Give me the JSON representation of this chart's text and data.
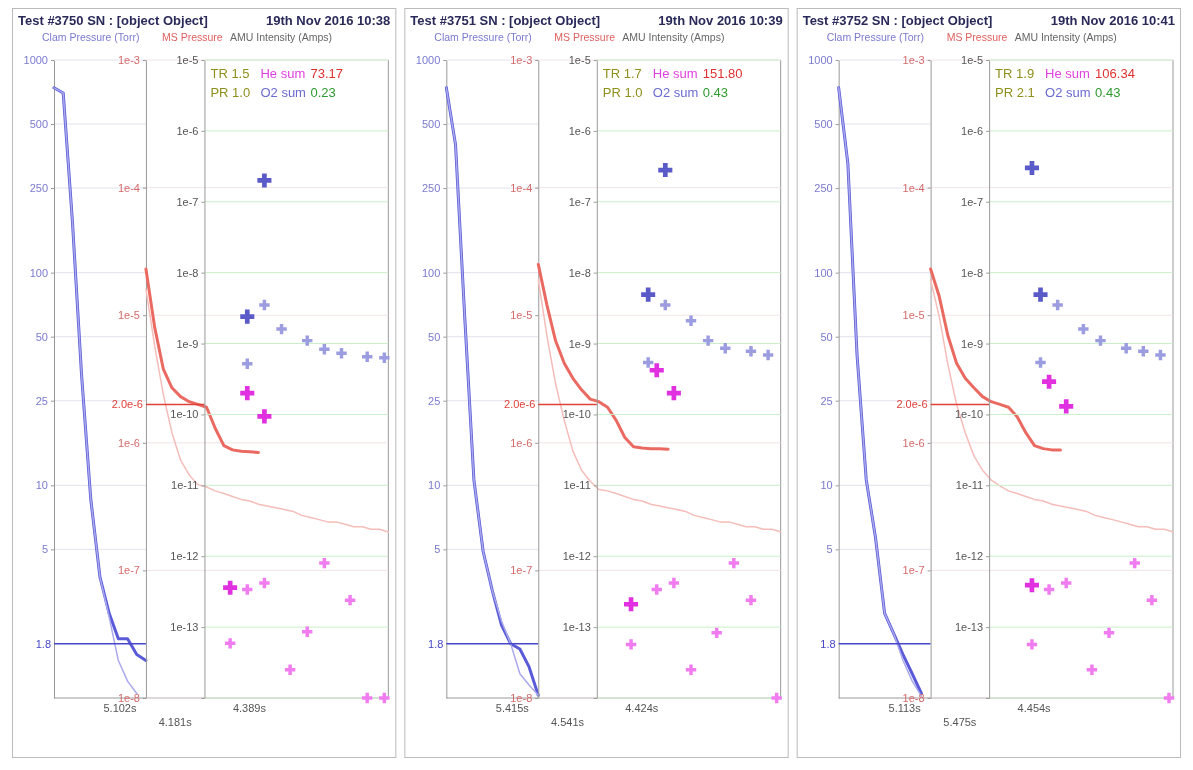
{
  "chart_data": [
    {
      "type": "line",
      "title": "Test #3750   SN : [object Object]",
      "ylabel": "Clam Pressure (Torr)",
      "log": true,
      "grid": true,
      "categories": [
        null,
        null,
        null,
        null,
        null,
        null,
        null,
        null,
        null,
        null,
        null
      ],
      "ylim": [
        1,
        1000
      ],
      "yticks": [
        1000,
        500,
        250,
        100,
        50,
        25,
        10,
        5
      ],
      "ref_lines": [
        {
          "axis": "y",
          "value": 1.8,
          "label": "1.8",
          "color": "#4646c8"
        }
      ],
      "annotations": [
        "5.102s"
      ],
      "series": [
        {
          "color": "#5b5bd9",
          "values": [
            740,
            700,
            175,
            33,
            8.6,
            3.7,
            2.5,
            1.9,
            1.9,
            1.6,
            1.5
          ]
        },
        {
          "color": "#a9a9ec",
          "values": [
            740,
            700,
            175,
            33,
            8.6,
            3.7,
            2.4,
            1.5,
            1.2,
            1.05,
            null
          ]
        }
      ]
    },
    {
      "type": "line",
      "ylabel": "MS Pressure",
      "log": true,
      "grid": true,
      "categories": [
        null,
        null,
        null,
        null,
        null,
        null,
        null,
        null,
        null,
        null,
        null,
        null,
        null,
        null,
        null,
        null,
        null,
        null,
        null,
        null,
        null,
        null,
        null,
        null,
        null,
        null,
        null,
        null,
        null
      ],
      "ylim": [
        1e-08,
        0.001
      ],
      "yticks": [
        {
          "value": 0.001,
          "label": "1e-3"
        },
        {
          "value": 0.0001,
          "label": "1e-4"
        },
        {
          "value": 1e-05,
          "label": "1e-5"
        },
        {
          "value": 1e-06,
          "label": "1e-6"
        },
        {
          "value": 1e-07,
          "label": "1e-7"
        },
        {
          "value": 1e-08,
          "label": "1e-8"
        }
      ],
      "ref_lines": [
        {
          "axis": "y",
          "value": 2e-06,
          "label": "2.0e-6",
          "color": "#e0403a"
        }
      ],
      "annotations": [
        "4.181s"
      ],
      "series": [
        {
          "color": "#ea6a62",
          "values": [
            2.3e-05,
            8.1e-06,
            3.8e-06,
            2.7e-06,
            2.3e-06,
            2.1e-06,
            2e-06,
            1.9e-06,
            1.3e-06,
            9.5e-07,
            8.8e-07,
            8.6e-07,
            8.5e-07,
            8.4e-07,
            null,
            null,
            null,
            null,
            null,
            null,
            null,
            null,
            null,
            null,
            null,
            null,
            null,
            null,
            null
          ]
        },
        {
          "color": "#f5bdb9",
          "values": [
            1.6e-05,
            5.8e-06,
            2.4e-06,
            1.2e-06,
            7.3e-07,
            5.6e-07,
            4.7e-07,
            4.5e-07,
            4.2e-07,
            4e-07,
            3.8e-07,
            3.6e-07,
            3.5e-07,
            3.3e-07,
            3.2e-07,
            3.1e-07,
            3e-07,
            2.9e-07,
            2.7e-07,
            2.6e-07,
            2.5e-07,
            2.4e-07,
            2.4e-07,
            2.3e-07,
            2.2e-07,
            2.2e-07,
            2.1e-07,
            2.1e-07,
            2e-07
          ]
        }
      ]
    },
    {
      "type": "scatter",
      "title": "19th Nov 2016 10:38",
      "ylabel": "AMU Intensity (Amps)",
      "log": true,
      "grid": true,
      "marker": "cross",
      "categories": [
        null,
        null,
        null,
        null,
        null,
        null,
        null,
        null,
        null,
        null,
        null,
        null,
        null,
        null,
        null,
        null,
        null,
        null,
        null,
        null,
        null,
        null
      ],
      "ylim": [
        1e-14,
        1e-05
      ],
      "yticks": [
        {
          "value": 1e-05,
          "label": "1e-5"
        },
        {
          "value": 1e-06,
          "label": "1e-6"
        },
        {
          "value": 1e-07,
          "label": "1e-7"
        },
        {
          "value": 1e-08,
          "label": "1e-8"
        },
        {
          "value": 1e-09,
          "label": "1e-9"
        },
        {
          "value": 1e-10,
          "label": "1e-10"
        },
        {
          "value": 1e-11,
          "label": "1e-11"
        },
        {
          "value": 1e-12,
          "label": "1e-12"
        },
        {
          "value": 1e-13,
          "label": "1e-13"
        },
        {
          "value": 1e-14,
          "label": null
        }
      ],
      "annotations": [
        "4.389s",
        "TR 1.5",
        "He sum",
        "73.17",
        "PR 1.0",
        "O2 sum",
        "0.23"
      ],
      "series": [
        {
          "color": "#5a5ac8",
          "values": [
            null,
            null,
            null,
            null,
            null,
            2.4e-09,
            null,
            2e-07,
            null,
            null,
            null,
            null,
            null,
            null,
            null,
            null,
            null,
            null,
            null,
            null,
            null,
            null
          ]
        },
        {
          "color": "#9c9ce0",
          "values": [
            null,
            null,
            null,
            null,
            null,
            5.2e-10,
            null,
            3.5e-09,
            null,
            1.6e-09,
            null,
            null,
            1.1e-09,
            null,
            8.3e-10,
            null,
            7.3e-10,
            null,
            null,
            6.5e-10,
            null,
            6.3e-10
          ]
        },
        {
          "color": "#e030e0",
          "values": [
            null,
            null,
            null,
            3.6e-13,
            null,
            2e-10,
            null,
            9.4e-11,
            null,
            null,
            null,
            null,
            null,
            null,
            null,
            null,
            null,
            null,
            null,
            null,
            null,
            null
          ]
        },
        {
          "color": "#f07cf0",
          "values": [
            null,
            null,
            null,
            5.9e-14,
            null,
            3.4e-13,
            null,
            4.2e-13,
            null,
            null,
            2.5e-14,
            null,
            8.6e-14,
            null,
            8e-13,
            null,
            null,
            2.4e-13,
            null,
            1e-14,
            null,
            1e-14
          ]
        }
      ]
    },
    {
      "type": "line",
      "title": "Test #3751   SN : [object Object]",
      "ylabel": "Clam Pressure (Torr)",
      "log": true,
      "grid": true,
      "categories": [
        null,
        null,
        null,
        null,
        null,
        null,
        null,
        null,
        null,
        null,
        null
      ],
      "ylim": [
        1,
        1000
      ],
      "yticks": [
        1000,
        500,
        250,
        100,
        50,
        25,
        10,
        5
      ],
      "ref_lines": [
        {
          "axis": "y",
          "value": 1.8,
          "label": "1.8",
          "color": "#4646c8"
        }
      ],
      "annotations": [
        "5.415s"
      ],
      "series": [
        {
          "color": "#5b5bd9",
          "values": [
            740,
            400,
            62,
            10.6,
            4.9,
            3.2,
            2.2,
            1.8,
            1.7,
            1.4,
            1.03
          ]
        },
        {
          "color": "#a9a9ec",
          "values": [
            740,
            400,
            62,
            10.6,
            4.9,
            3.2,
            2.3,
            1.8,
            1.3,
            1.15,
            1.03
          ]
        }
      ]
    },
    {
      "type": "line",
      "ylabel": "MS Pressure",
      "log": true,
      "grid": true,
      "categories": [
        null,
        null,
        null,
        null,
        null,
        null,
        null,
        null,
        null,
        null,
        null,
        null,
        null,
        null,
        null,
        null,
        null,
        null,
        null,
        null,
        null,
        null,
        null,
        null,
        null,
        null,
        null,
        null,
        null
      ],
      "ylim": [
        1e-08,
        0.001
      ],
      "yticks": [
        {
          "value": 0.001,
          "label": "1e-3"
        },
        {
          "value": 0.0001,
          "label": "1e-4"
        },
        {
          "value": 1e-05,
          "label": "1e-5"
        },
        {
          "value": 1e-06,
          "label": "1e-6"
        },
        {
          "value": 1e-07,
          "label": "1e-7"
        },
        {
          "value": 1e-08,
          "label": "1e-8"
        }
      ],
      "ref_lines": [
        {
          "axis": "y",
          "value": 2e-06,
          "label": "2.0e-6",
          "color": "#e0403a"
        }
      ],
      "annotations": [
        "4.541s"
      ],
      "series": [
        {
          "color": "#ea6a62",
          "values": [
            2.5e-05,
            1.2e-05,
            6.3e-06,
            4.2e-06,
            3.2e-06,
            2.6e-06,
            2.2e-06,
            2.1e-06,
            1.9e-06,
            1.5e-06,
            1.1e-06,
            9.3e-07,
            9.1e-07,
            9e-07,
            9e-07,
            8.9e-07,
            null,
            null,
            null,
            null,
            null,
            null,
            null,
            null,
            null,
            null,
            null,
            null,
            null
          ]
        },
        {
          "color": "#f5bdb9",
          "values": [
            1.9e-05,
            6.9e-06,
            2.9e-06,
            1.5e-06,
            8.6e-07,
            6.1e-07,
            5e-07,
            4.3e-07,
            4.2e-07,
            4e-07,
            3.8e-07,
            3.6e-07,
            3.5e-07,
            3.3e-07,
            3.2e-07,
            3.1e-07,
            3e-07,
            2.9e-07,
            2.7e-07,
            2.6e-07,
            2.5e-07,
            2.4e-07,
            2.4e-07,
            2.3e-07,
            2.2e-07,
            2.2e-07,
            2.1e-07,
            2.1e-07,
            2e-07
          ]
        }
      ]
    },
    {
      "type": "scatter",
      "title": "19th Nov 2016 10:39",
      "ylabel": "AMU Intensity (Amps)",
      "log": true,
      "grid": true,
      "marker": "cross",
      "categories": [
        null,
        null,
        null,
        null,
        null,
        null,
        null,
        null,
        null,
        null,
        null,
        null,
        null,
        null,
        null,
        null,
        null,
        null,
        null,
        null,
        null,
        null
      ],
      "ylim": [
        1e-14,
        1e-05
      ],
      "yticks": [
        {
          "value": 1e-05,
          "label": "1e-5"
        },
        {
          "value": 1e-06,
          "label": "1e-6"
        },
        {
          "value": 1e-07,
          "label": "1e-7"
        },
        {
          "value": 1e-08,
          "label": "1e-8"
        },
        {
          "value": 1e-09,
          "label": "1e-9"
        },
        {
          "value": 1e-10,
          "label": "1e-10"
        },
        {
          "value": 1e-11,
          "label": "1e-11"
        },
        {
          "value": 1e-12,
          "label": "1e-12"
        },
        {
          "value": 1e-13,
          "label": "1e-13"
        },
        {
          "value": 1e-14,
          "label": null
        }
      ],
      "annotations": [
        "4.424s",
        "TR 1.7",
        "He sum",
        "151.80",
        "PR 1.0",
        "O2 sum",
        "0.43"
      ],
      "series": [
        {
          "color": "#5a5ac8",
          "values": [
            null,
            null,
            null,
            null,
            null,
            null,
            4.9e-09,
            null,
            2.8e-07,
            null,
            null,
            null,
            null,
            null,
            null,
            null,
            null,
            null,
            null,
            null,
            null,
            null
          ]
        },
        {
          "color": "#9c9ce0",
          "values": [
            null,
            null,
            null,
            null,
            null,
            null,
            5.4e-10,
            null,
            3.5e-09,
            null,
            null,
            2.1e-09,
            null,
            1.1e-09,
            null,
            8.6e-10,
            null,
            null,
            7.8e-10,
            null,
            6.9e-10,
            null
          ]
        },
        {
          "color": "#e030e0",
          "values": [
            null,
            null,
            null,
            null,
            2.1e-13,
            null,
            null,
            4.2e-10,
            null,
            2e-10,
            null,
            null,
            null,
            null,
            null,
            null,
            null,
            null,
            null,
            null,
            null,
            null
          ]
        },
        {
          "color": "#f07cf0",
          "values": [
            null,
            null,
            null,
            null,
            5.7e-14,
            null,
            null,
            3.4e-13,
            null,
            4.2e-13,
            null,
            2.5e-14,
            null,
            null,
            8.3e-14,
            null,
            8e-13,
            null,
            2.4e-13,
            null,
            null,
            1e-14
          ]
        }
      ]
    },
    {
      "type": "line",
      "title": "Test #3752   SN : [object Object]",
      "ylabel": "Clam Pressure (Torr)",
      "log": true,
      "grid": true,
      "categories": [
        null,
        null,
        null,
        null,
        null,
        null,
        null,
        null,
        null,
        null,
        null
      ],
      "ylim": [
        1,
        1000
      ],
      "yticks": [
        1000,
        500,
        250,
        100,
        50,
        25,
        10,
        5
      ],
      "ref_lines": [
        {
          "axis": "y",
          "value": 1.8,
          "label": "1.8",
          "color": "#4646c8"
        }
      ],
      "annotations": [
        "5.113s"
      ],
      "series": [
        {
          "color": "#5b5bd9",
          "values": [
            740,
            326,
            41,
            10.6,
            5.7,
            2.5,
            2.0,
            1.6,
            1.3,
            1.05,
            null
          ]
        },
        {
          "color": "#a9a9ec",
          "values": [
            740,
            326,
            41,
            10.6,
            5.7,
            2.5,
            2.0,
            1.5,
            1.2,
            1.02,
            null
          ]
        }
      ]
    },
    {
      "type": "line",
      "ylabel": "MS Pressure",
      "log": true,
      "grid": true,
      "categories": [
        null,
        null,
        null,
        null,
        null,
        null,
        null,
        null,
        null,
        null,
        null,
        null,
        null,
        null,
        null,
        null,
        null,
        null,
        null,
        null,
        null,
        null,
        null,
        null,
        null,
        null,
        null,
        null,
        null
      ],
      "ylim": [
        1e-08,
        0.001
      ],
      "yticks": [
        {
          "value": 0.001,
          "label": "1e-3"
        },
        {
          "value": 0.0001,
          "label": "1e-4"
        },
        {
          "value": 1e-05,
          "label": "1e-5"
        },
        {
          "value": 1e-06,
          "label": "1e-6"
        },
        {
          "value": 1e-07,
          "label": "1e-7"
        },
        {
          "value": 1e-08,
          "label": "1e-8"
        }
      ],
      "ref_lines": [
        {
          "axis": "y",
          "value": 2e-06,
          "label": "2.0e-6",
          "color": "#e0403a"
        }
      ],
      "annotations": [
        "5.475s"
      ],
      "series": [
        {
          "color": "#ea6a62",
          "values": [
            2.3e-05,
            1.4e-05,
            6.9e-06,
            4.2e-06,
            3.2e-06,
            2.7e-06,
            2.3e-06,
            2.1e-06,
            2e-06,
            1.9e-06,
            1.6e-06,
            1.2e-06,
            9.5e-07,
            9e-07,
            8.8e-07,
            8.8e-07,
            null,
            null,
            null,
            null,
            null,
            null,
            null,
            null,
            null,
            null,
            null,
            null,
            null
          ]
        },
        {
          "color": "#f5bdb9",
          "values": [
            1.9e-05,
            9.7e-06,
            4.1e-06,
            2e-06,
            1.2e-06,
            7.9e-07,
            6.1e-07,
            5.1e-07,
            4.6e-07,
            4.2e-07,
            4e-07,
            3.8e-07,
            3.6e-07,
            3.5e-07,
            3.3e-07,
            3.2e-07,
            3.1e-07,
            3e-07,
            2.9e-07,
            2.7e-07,
            2.6e-07,
            2.5e-07,
            2.4e-07,
            2.3e-07,
            2.2e-07,
            2.2e-07,
            2.1e-07,
            2.1e-07,
            2e-07
          ]
        }
      ]
    },
    {
      "type": "scatter",
      "title": "19th Nov 2016 10:41",
      "ylabel": "AMU Intensity (Amps)",
      "log": true,
      "grid": true,
      "marker": "cross",
      "categories": [
        null,
        null,
        null,
        null,
        null,
        null,
        null,
        null,
        null,
        null,
        null,
        null,
        null,
        null,
        null,
        null,
        null,
        null,
        null,
        null,
        null,
        null
      ],
      "ylim": [
        1e-14,
        1e-05
      ],
      "yticks": [
        {
          "value": 1e-05,
          "label": "1e-5"
        },
        {
          "value": 1e-06,
          "label": "1e-6"
        },
        {
          "value": 1e-07,
          "label": "1e-7"
        },
        {
          "value": 1e-08,
          "label": "1e-8"
        },
        {
          "value": 1e-09,
          "label": "1e-9"
        },
        {
          "value": 1e-10,
          "label": "1e-10"
        },
        {
          "value": 1e-11,
          "label": "1e-11"
        },
        {
          "value": 1e-12,
          "label": "1e-12"
        },
        {
          "value": 1e-13,
          "label": "1e-13"
        },
        {
          "value": 1e-14,
          "label": null
        }
      ],
      "annotations": [
        "4.454s",
        "TR 1.9",
        "He sum",
        "106.34",
        "PR 2.1",
        "O2 sum",
        "0.43"
      ],
      "series": [
        {
          "color": "#5a5ac8",
          "values": [
            null,
            null,
            null,
            null,
            null,
            3e-07,
            4.9e-09,
            null,
            null,
            null,
            null,
            null,
            null,
            null,
            null,
            null,
            null,
            null,
            null,
            null,
            null,
            null
          ]
        },
        {
          "color": "#9c9ce0",
          "values": [
            null,
            null,
            null,
            null,
            null,
            null,
            5.4e-10,
            null,
            3.5e-09,
            null,
            null,
            1.6e-09,
            null,
            1.1e-09,
            null,
            null,
            8.6e-10,
            null,
            7.8e-10,
            null,
            6.9e-10,
            null
          ]
        },
        {
          "color": "#e030e0",
          "values": [
            null,
            null,
            null,
            null,
            null,
            3.9e-13,
            null,
            2.9e-10,
            null,
            1.3e-10,
            null,
            null,
            null,
            null,
            null,
            null,
            null,
            null,
            null,
            null,
            null,
            null
          ]
        },
        {
          "color": "#f07cf0",
          "values": [
            null,
            null,
            null,
            null,
            null,
            5.7e-14,
            null,
            3.4e-13,
            null,
            4.2e-13,
            null,
            null,
            2.5e-14,
            null,
            8.3e-14,
            null,
            null,
            8e-13,
            null,
            2.4e-13,
            null,
            1e-14
          ]
        }
      ]
    }
  ]
}
